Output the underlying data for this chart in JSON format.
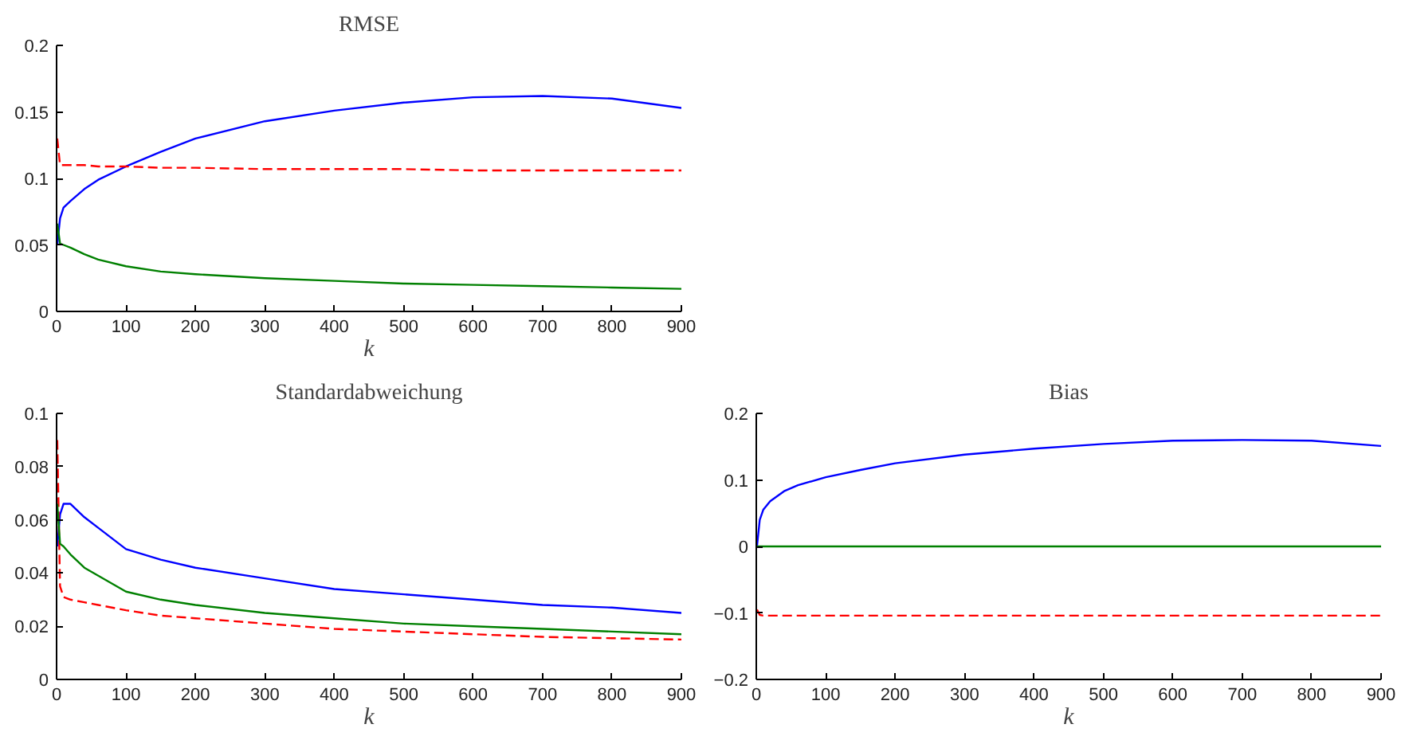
{
  "chart_data": [
    {
      "type": "line",
      "title": "RMSE",
      "xlabel": "k",
      "x": [
        1,
        5,
        10,
        20,
        40,
        60,
        100,
        150,
        200,
        300,
        400,
        500,
        600,
        700,
        800,
        900
      ],
      "xlim": [
        0,
        900
      ],
      "xticks": [
        0,
        100,
        200,
        300,
        400,
        500,
        600,
        700,
        800,
        900
      ],
      "ylim": [
        0,
        0.2
      ],
      "yticks": [
        0,
        0.05,
        {
          "value": 0.1,
          "label": "0.1"
        },
        0.15,
        {
          "value": 0.2,
          "label": "0.2"
        }
      ],
      "series": [
        {
          "color": "#0000ff",
          "line_style": "solid",
          "values": [
            0.05,
            0.07,
            0.078,
            0.083,
            0.092,
            0.099,
            0.109,
            0.12,
            0.13,
            0.143,
            0.151,
            0.157,
            0.161,
            0.162,
            0.16,
            0.153
          ]
        },
        {
          "color": "#ff0000",
          "line_style": "dashed",
          "values": [
            0.13,
            0.11,
            0.11,
            0.11,
            0.11,
            0.109,
            0.109,
            0.108,
            0.108,
            0.107,
            0.107,
            0.107,
            0.106,
            0.106,
            0.106,
            0.106
          ]
        },
        {
          "color": "#008000",
          "line_style": "solid",
          "values": [
            0.066,
            0.051,
            0.05,
            0.048,
            0.043,
            0.039,
            0.034,
            0.03,
            0.028,
            0.025,
            0.023,
            0.021,
            0.02,
            0.019,
            0.018,
            0.017
          ]
        }
      ]
    },
    {
      "type": "line",
      "title": "Standardabweichung",
      "xlabel": "k",
      "x": [
        1,
        5,
        10,
        20,
        40,
        60,
        100,
        150,
        200,
        300,
        400,
        500,
        600,
        700,
        800,
        900
      ],
      "xlim": [
        0,
        900
      ],
      "xticks": [
        0,
        100,
        200,
        300,
        400,
        500,
        600,
        700,
        800,
        900
      ],
      "ylim": [
        0,
        0.1
      ],
      "yticks": [
        0,
        0.02,
        0.04,
        0.06,
        0.08,
        {
          "value": 0.1,
          "label": "0.1"
        }
      ],
      "series": [
        {
          "color": "#0000ff",
          "line_style": "solid",
          "values": [
            0.05,
            0.062,
            0.066,
            0.066,
            0.061,
            0.057,
            0.049,
            0.045,
            0.042,
            0.038,
            0.034,
            0.032,
            0.03,
            0.028,
            0.027,
            0.025
          ]
        },
        {
          "color": "#ff0000",
          "line_style": "dashed",
          "values": [
            0.09,
            0.035,
            0.031,
            0.03,
            0.029,
            0.028,
            0.026,
            0.024,
            0.023,
            0.021,
            0.019,
            0.018,
            0.017,
            0.016,
            0.0155,
            0.015
          ]
        },
        {
          "color": "#008000",
          "line_style": "solid",
          "values": [
            0.066,
            0.051,
            0.05,
            0.047,
            0.042,
            0.039,
            0.033,
            0.03,
            0.028,
            0.025,
            0.023,
            0.021,
            0.02,
            0.019,
            0.018,
            0.017
          ]
        }
      ]
    },
    {
      "type": "line",
      "title": "Bias",
      "xlabel": "k",
      "x": [
        1,
        5,
        10,
        20,
        40,
        60,
        100,
        150,
        200,
        300,
        400,
        500,
        600,
        700,
        800,
        900
      ],
      "xlim": [
        0,
        900
      ],
      "xticks": [
        0,
        100,
        200,
        300,
        400,
        500,
        600,
        700,
        800,
        900
      ],
      "ylim": [
        -0.2,
        0.2
      ],
      "yticks": [
        {
          "value": -0.2,
          "label": "−0.2"
        },
        {
          "value": -0.1,
          "label": "−0.1"
        },
        0,
        {
          "value": 0.1,
          "label": "0.1"
        },
        {
          "value": 0.2,
          "label": "0.2"
        }
      ],
      "series": [
        {
          "color": "#0000ff",
          "line_style": "solid",
          "values": [
            0,
            0.04,
            0.055,
            0.068,
            0.083,
            0.092,
            0.104,
            0.115,
            0.125,
            0.138,
            0.147,
            0.154,
            0.159,
            0.16,
            0.159,
            0.151
          ]
        },
        {
          "color": "#ff0000",
          "line_style": "dashed",
          "values": [
            -0.095,
            -0.103,
            -0.104,
            -0.104,
            -0.104,
            -0.104,
            -0.104,
            -0.104,
            -0.104,
            -0.104,
            -0.104,
            -0.104,
            -0.104,
            -0.104,
            -0.104,
            -0.104
          ]
        },
        {
          "color": "#008000",
          "line_style": "solid",
          "values": [
            0,
            0,
            0,
            0,
            0,
            0,
            0,
            0,
            0,
            0,
            0,
            0,
            0,
            0,
            0,
            0
          ]
        }
      ]
    }
  ]
}
